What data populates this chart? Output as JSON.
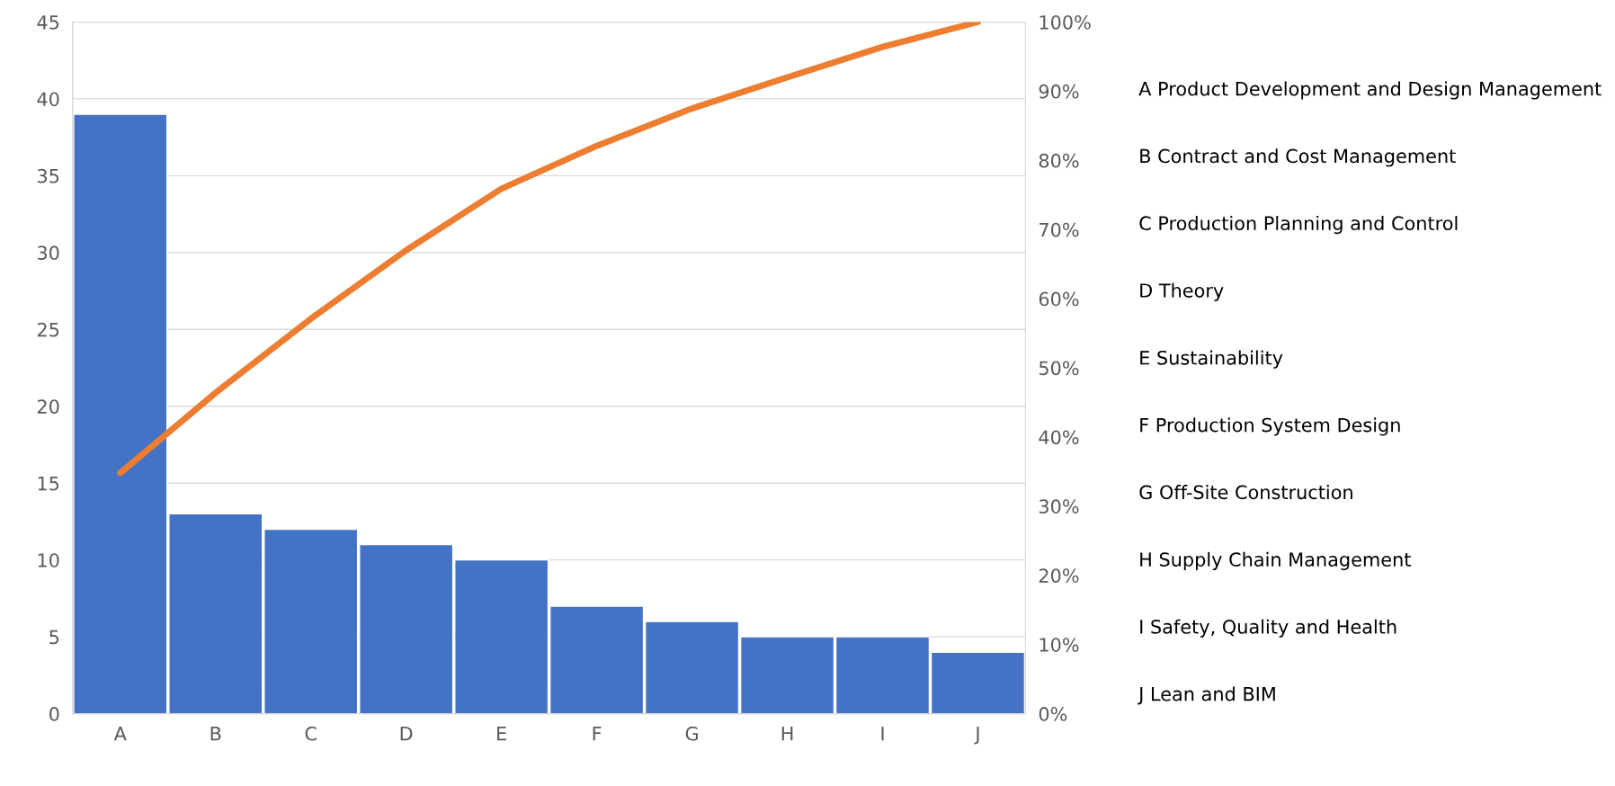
{
  "chart_data": {
    "type": "bar",
    "categories": [
      "A",
      "B",
      "C",
      "D",
      "E",
      "F",
      "G",
      "H",
      "I",
      "J"
    ],
    "series": [
      {
        "color": "#4472c4",
        "values": [
          39,
          13,
          12,
          11,
          10,
          7,
          6,
          5,
          5,
          4
        ]
      },
      {
        "type": "line",
        "axis": "y2",
        "color": "#ed7d31",
        "values": [
          34.8,
          46.4,
          57.1,
          67.0,
          75.9,
          82.1,
          87.5,
          92.0,
          96.4,
          100
        ]
      }
    ],
    "ylim": [
      0,
      45
    ],
    "yticks": [
      0,
      5,
      10,
      15,
      20,
      25,
      30,
      35,
      40,
      45
    ],
    "y2lim": [
      0,
      100
    ],
    "y2ticks": [
      {
        "value": 0,
        "label": "0%"
      },
      {
        "value": 10,
        "label": "10%"
      },
      {
        "value": 20,
        "label": "20%"
      },
      {
        "value": 30,
        "label": "30%"
      },
      {
        "value": 40,
        "label": "40%"
      },
      {
        "value": 50,
        "label": "50%"
      },
      {
        "value": 60,
        "label": "60%"
      },
      {
        "value": 70,
        "label": "70%"
      },
      {
        "value": 80,
        "label": "80%"
      },
      {
        "value": 90,
        "label": "90%"
      },
      {
        "value": 100,
        "label": "100%"
      }
    ],
    "grid": "y",
    "marker": "none",
    "line_style": "solid",
    "annotations": [
      "A Product Development and Design Management",
      "B Contract and Cost Management",
      "C Production Planning and Control",
      "D Theory",
      "E Sustainability",
      "F Production System Design",
      "G Off-Site Construction",
      "H Supply Chain Management",
      "I Safety, Quality and Health",
      "J Lean and BIM"
    ]
  }
}
